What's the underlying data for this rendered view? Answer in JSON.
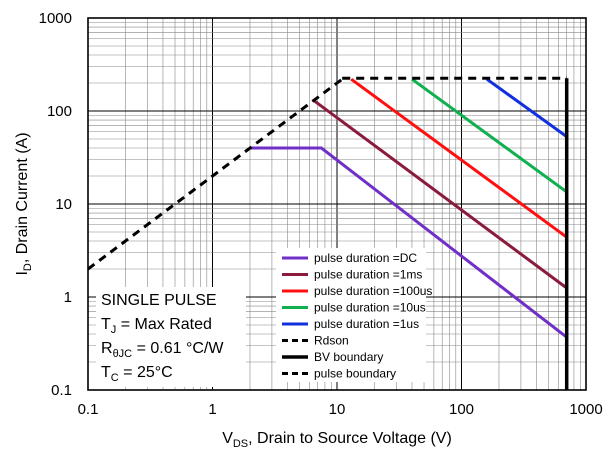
{
  "chart_data": {
    "type": "line",
    "title": "",
    "xscale": "log",
    "yscale": "log",
    "xlim": [
      0.1,
      1000
    ],
    "ylim": [
      0.1,
      1000
    ],
    "x_ticks": [
      "0.1",
      "1",
      "10",
      "100",
      "1000"
    ],
    "y_ticks": [
      "0.1",
      "1",
      "10",
      "100",
      "1000"
    ],
    "x_ticks_values": [
      0.1,
      1,
      10,
      100,
      1000
    ],
    "y_ticks_values": [
      0.1,
      1,
      10,
      100,
      1000
    ],
    "xlabel": {
      "main": "V",
      "sub": "DS",
      "rest": ", Drain to Source Voltage (V)"
    },
    "ylabel": {
      "main": "I",
      "sub": "D",
      "rest": ", Drain Current (A)"
    },
    "grid": true,
    "legend_position": "bottom-right",
    "series": [
      {
        "name": "pulse duration =DC",
        "color": "#7030c8",
        "style": "solid",
        "points": [
          [
            2,
            40
          ],
          [
            7.5,
            40
          ],
          [
            700,
            0.37
          ]
        ]
      },
      {
        "name": "pulse duration =1ms",
        "color": "#8b1a3c",
        "style": "solid",
        "points": [
          [
            6.5,
            130
          ],
          [
            700,
            1.25
          ]
        ]
      },
      {
        "name": "pulse duration =100us",
        "color": "#ff1010",
        "style": "solid",
        "points": [
          [
            13,
            220
          ],
          [
            700,
            4.4
          ]
        ]
      },
      {
        "name": "pulse duration =10us",
        "color": "#10b050",
        "style": "solid",
        "points": [
          [
            40,
            220
          ],
          [
            700,
            13.5
          ]
        ]
      },
      {
        "name": "pulse duration =1us",
        "color": "#1030e0",
        "style": "solid",
        "points": [
          [
            160,
            220
          ],
          [
            700,
            53
          ]
        ]
      },
      {
        "name": "Rdson",
        "color": "#000000",
        "style": "dashed",
        "points": [
          [
            0.1,
            2
          ],
          [
            11,
            220
          ]
        ]
      },
      {
        "name": "BV boundary",
        "color": "#000000",
        "style": "solid-thick",
        "points": [
          [
            700,
            0.1
          ],
          [
            700,
            225
          ]
        ]
      },
      {
        "name": "pulse boundary",
        "color": "#000000",
        "style": "dashed",
        "points": [
          [
            11,
            225
          ],
          [
            700,
            225
          ]
        ]
      }
    ],
    "annotations": [
      {
        "text": "SINGLE PULSE"
      },
      {
        "main": "T",
        "sub": "J",
        "rest": " = Max Rated"
      },
      {
        "main": "R",
        "sub": "θJC",
        "rest": " = 0.61 °C/W"
      },
      {
        "main": "T",
        "sub": "C",
        "rest": " = 25°C"
      }
    ]
  }
}
